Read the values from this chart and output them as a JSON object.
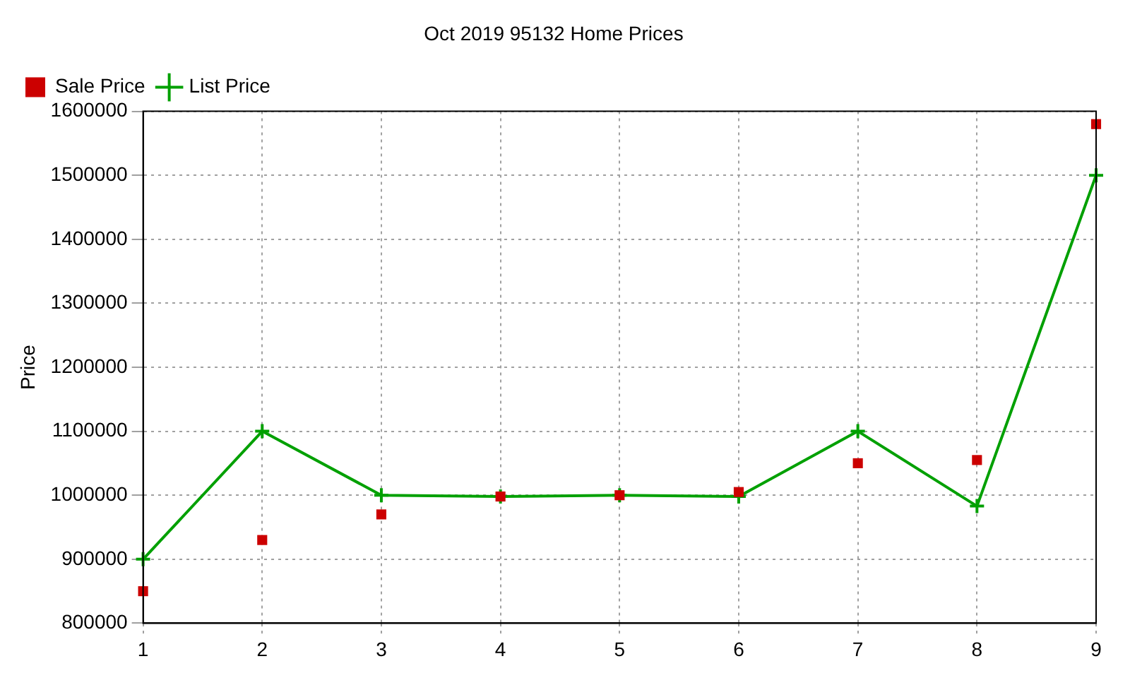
{
  "chart_data": {
    "type": "line",
    "title": "Oct 2019 95132 Home Prices",
    "ylabel": "Price",
    "x": [
      1,
      2,
      3,
      4,
      5,
      6,
      7,
      8,
      9
    ],
    "series": [
      {
        "name": "List Price",
        "type": "line",
        "color": "#00a000",
        "marker": "cross",
        "values": [
          900000,
          1100000,
          1000000,
          998000,
          1000000,
          998000,
          1100000,
          983000,
          1500000
        ]
      },
      {
        "name": "Sale Price",
        "type": "scatter",
        "color": "#cc0000",
        "marker": "square",
        "values": [
          850000,
          930000,
          970000,
          998000,
          1000000,
          1005000,
          1050000,
          1055000,
          1580000
        ]
      }
    ],
    "xlim": [
      1,
      9
    ],
    "xticks": [
      1,
      2,
      3,
      4,
      5,
      6,
      7,
      8,
      9
    ],
    "ylim": [
      800000,
      1600000
    ],
    "yticks": [
      800000,
      900000,
      1000000,
      1100000,
      1200000,
      1300000,
      1400000,
      1500000,
      1600000
    ],
    "grid": true,
    "legend": "top left"
  }
}
